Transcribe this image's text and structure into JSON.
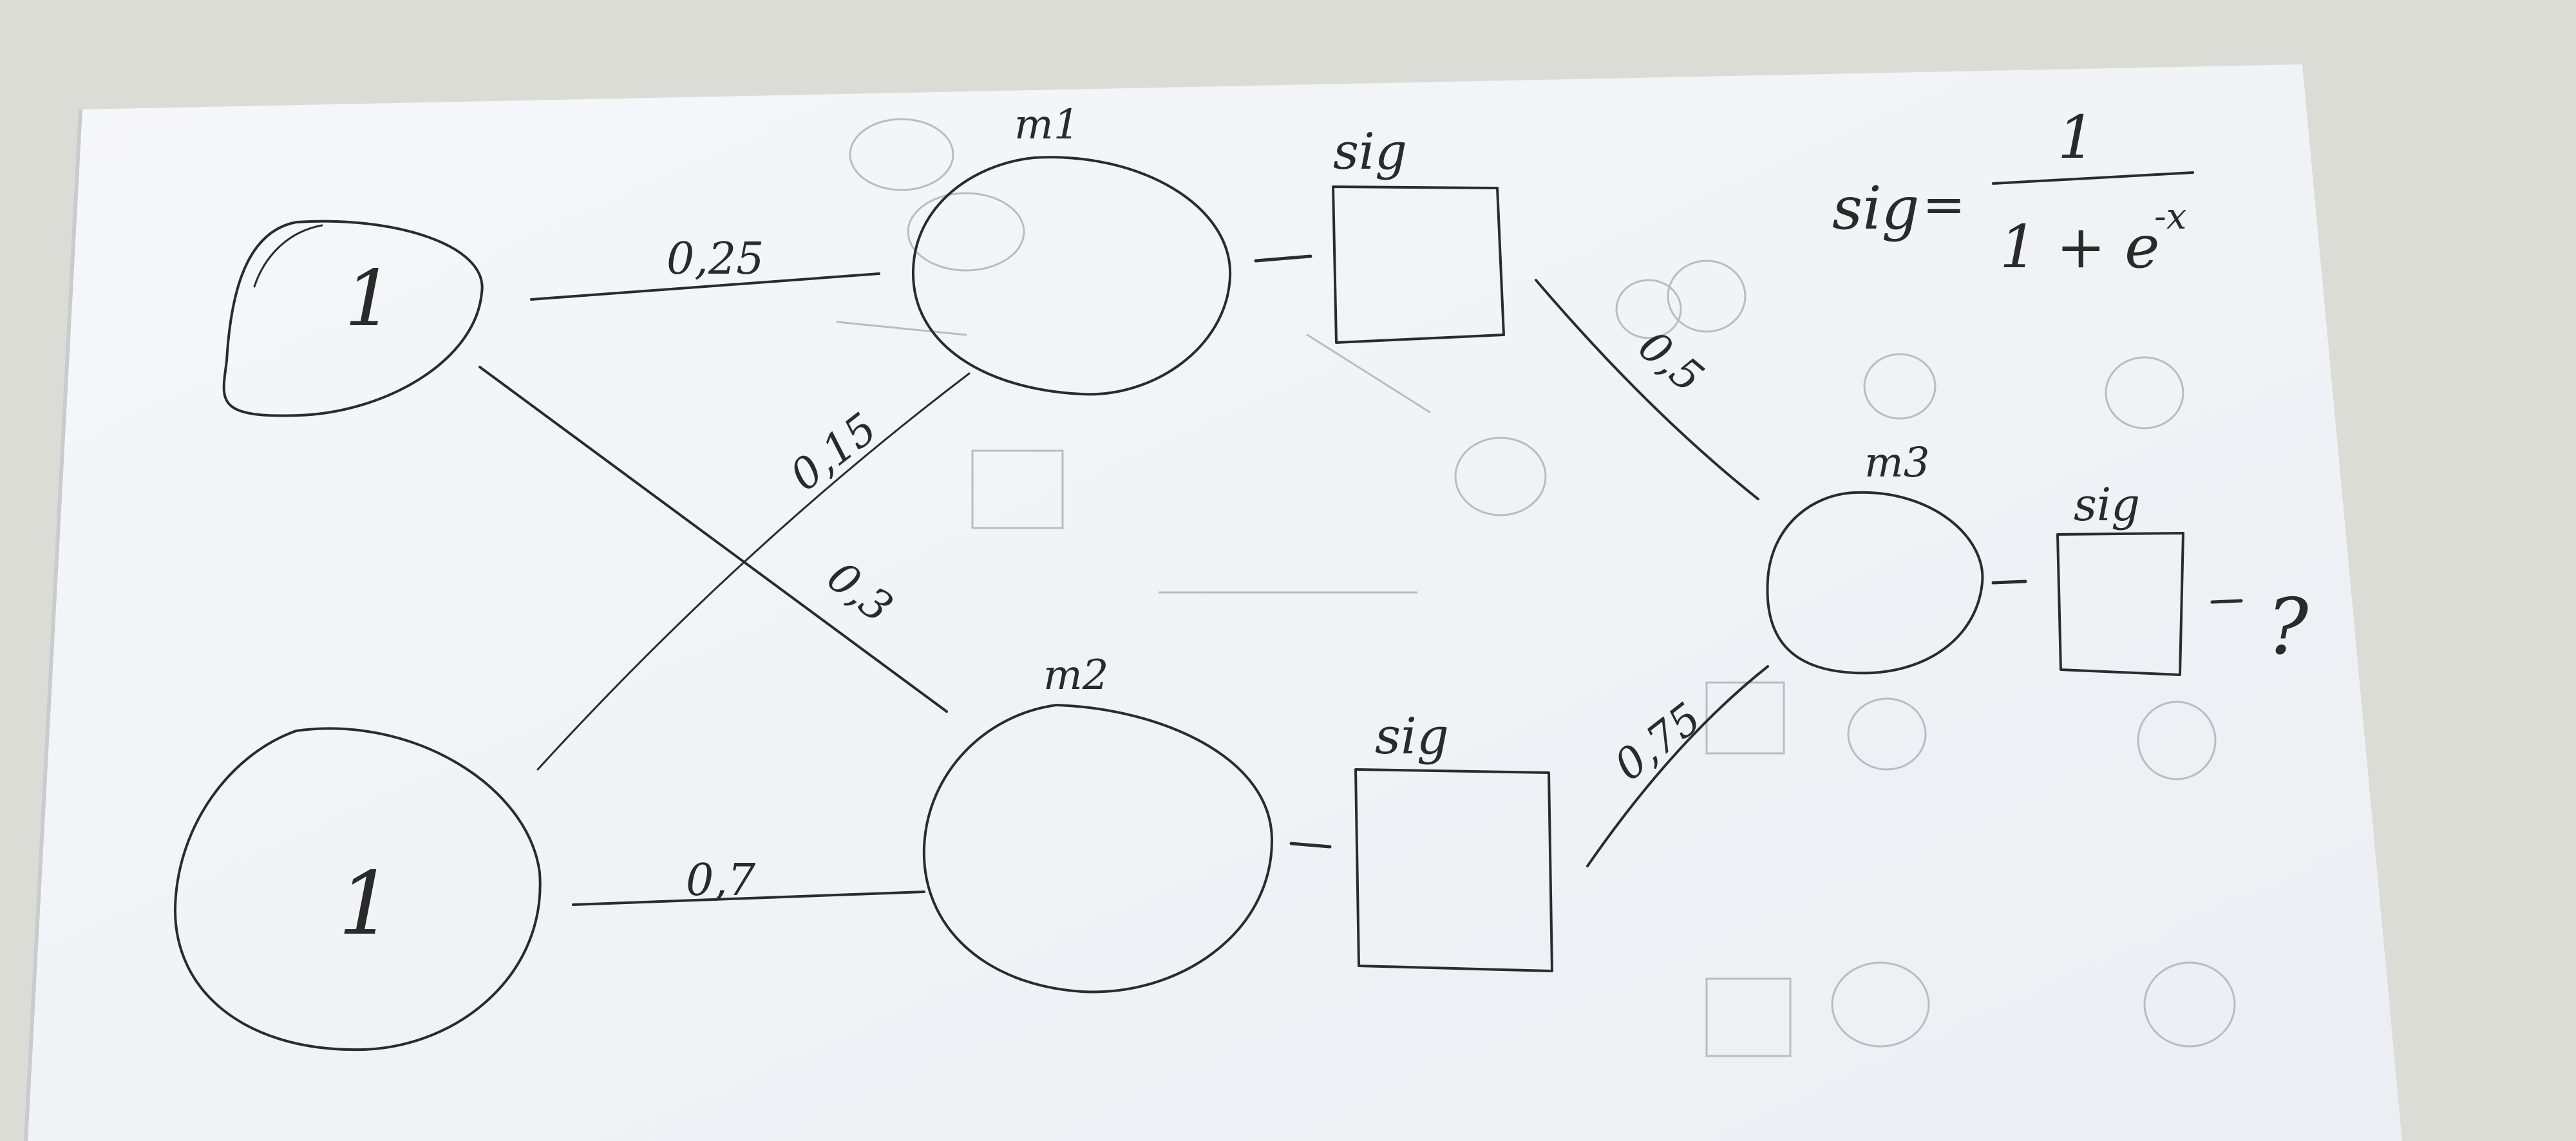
{
  "inputs": [
    {
      "label": "1"
    },
    {
      "label": "1"
    }
  ],
  "neurons": [
    {
      "label": "m1"
    },
    {
      "label": "m2"
    },
    {
      "label": "m3"
    }
  ],
  "activation_boxes": [
    {
      "label": "sig"
    },
    {
      "label": "sig"
    },
    {
      "label": "sig"
    }
  ],
  "weights": [
    {
      "from": "input-1",
      "to": "m1",
      "label": "0,25"
    },
    {
      "from": "input-2",
      "to": "m1",
      "label": "0,15"
    },
    {
      "from": "input-1",
      "to": "m2",
      "label": "0,3"
    },
    {
      "from": "input-2",
      "to": "m2",
      "label": "0,7"
    },
    {
      "from": "sig-1",
      "to": "m3",
      "label": "0,5"
    },
    {
      "from": "sig-2",
      "to": "m3",
      "label": "0,75"
    }
  ],
  "output": {
    "label": "?"
  },
  "formula": {
    "lhs": "sig",
    "equals": "=",
    "numerator": "1",
    "denominator": "1 + e",
    "exponent": "-x"
  },
  "colors": {
    "paper": "#f3f4f8",
    "table": "#dcdcd6",
    "ink": "#2b2b2b",
    "bleed_through": "#b9bcc3"
  }
}
